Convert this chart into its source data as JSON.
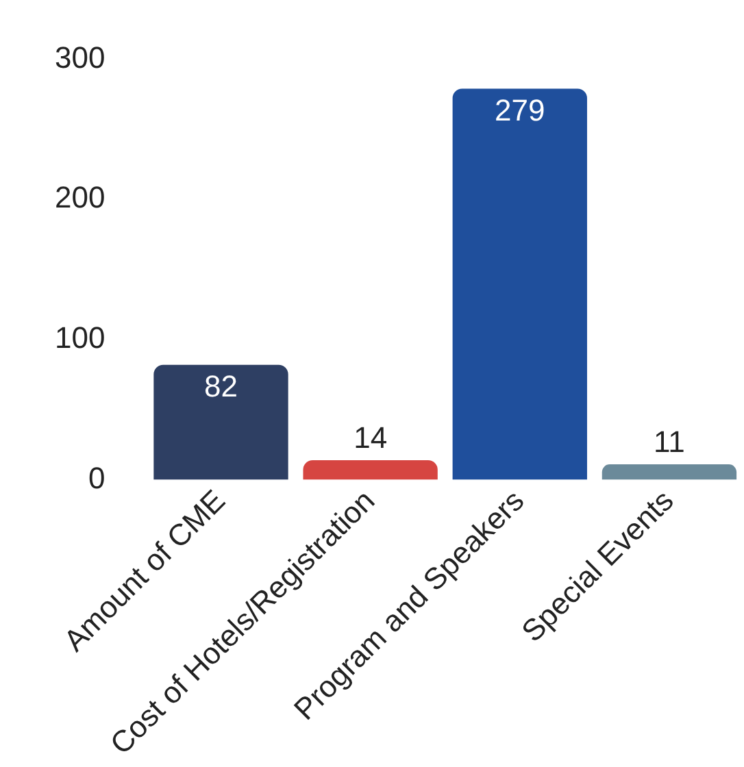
{
  "chart_data": {
    "type": "bar",
    "categories": [
      "Amount of CME",
      "Cost of Hotels/Registration",
      "Program and Speakers",
      "Special Events"
    ],
    "values": [
      82,
      14,
      279,
      11
    ],
    "colors": [
      "#2e3f63",
      "#d64541",
      "#1f4f9c",
      "#6b8a9a"
    ],
    "ylim": [
      0,
      300
    ],
    "yticks": [
      0,
      100,
      200,
      300
    ],
    "grid": false,
    "legend": false,
    "data_labels": true
  }
}
